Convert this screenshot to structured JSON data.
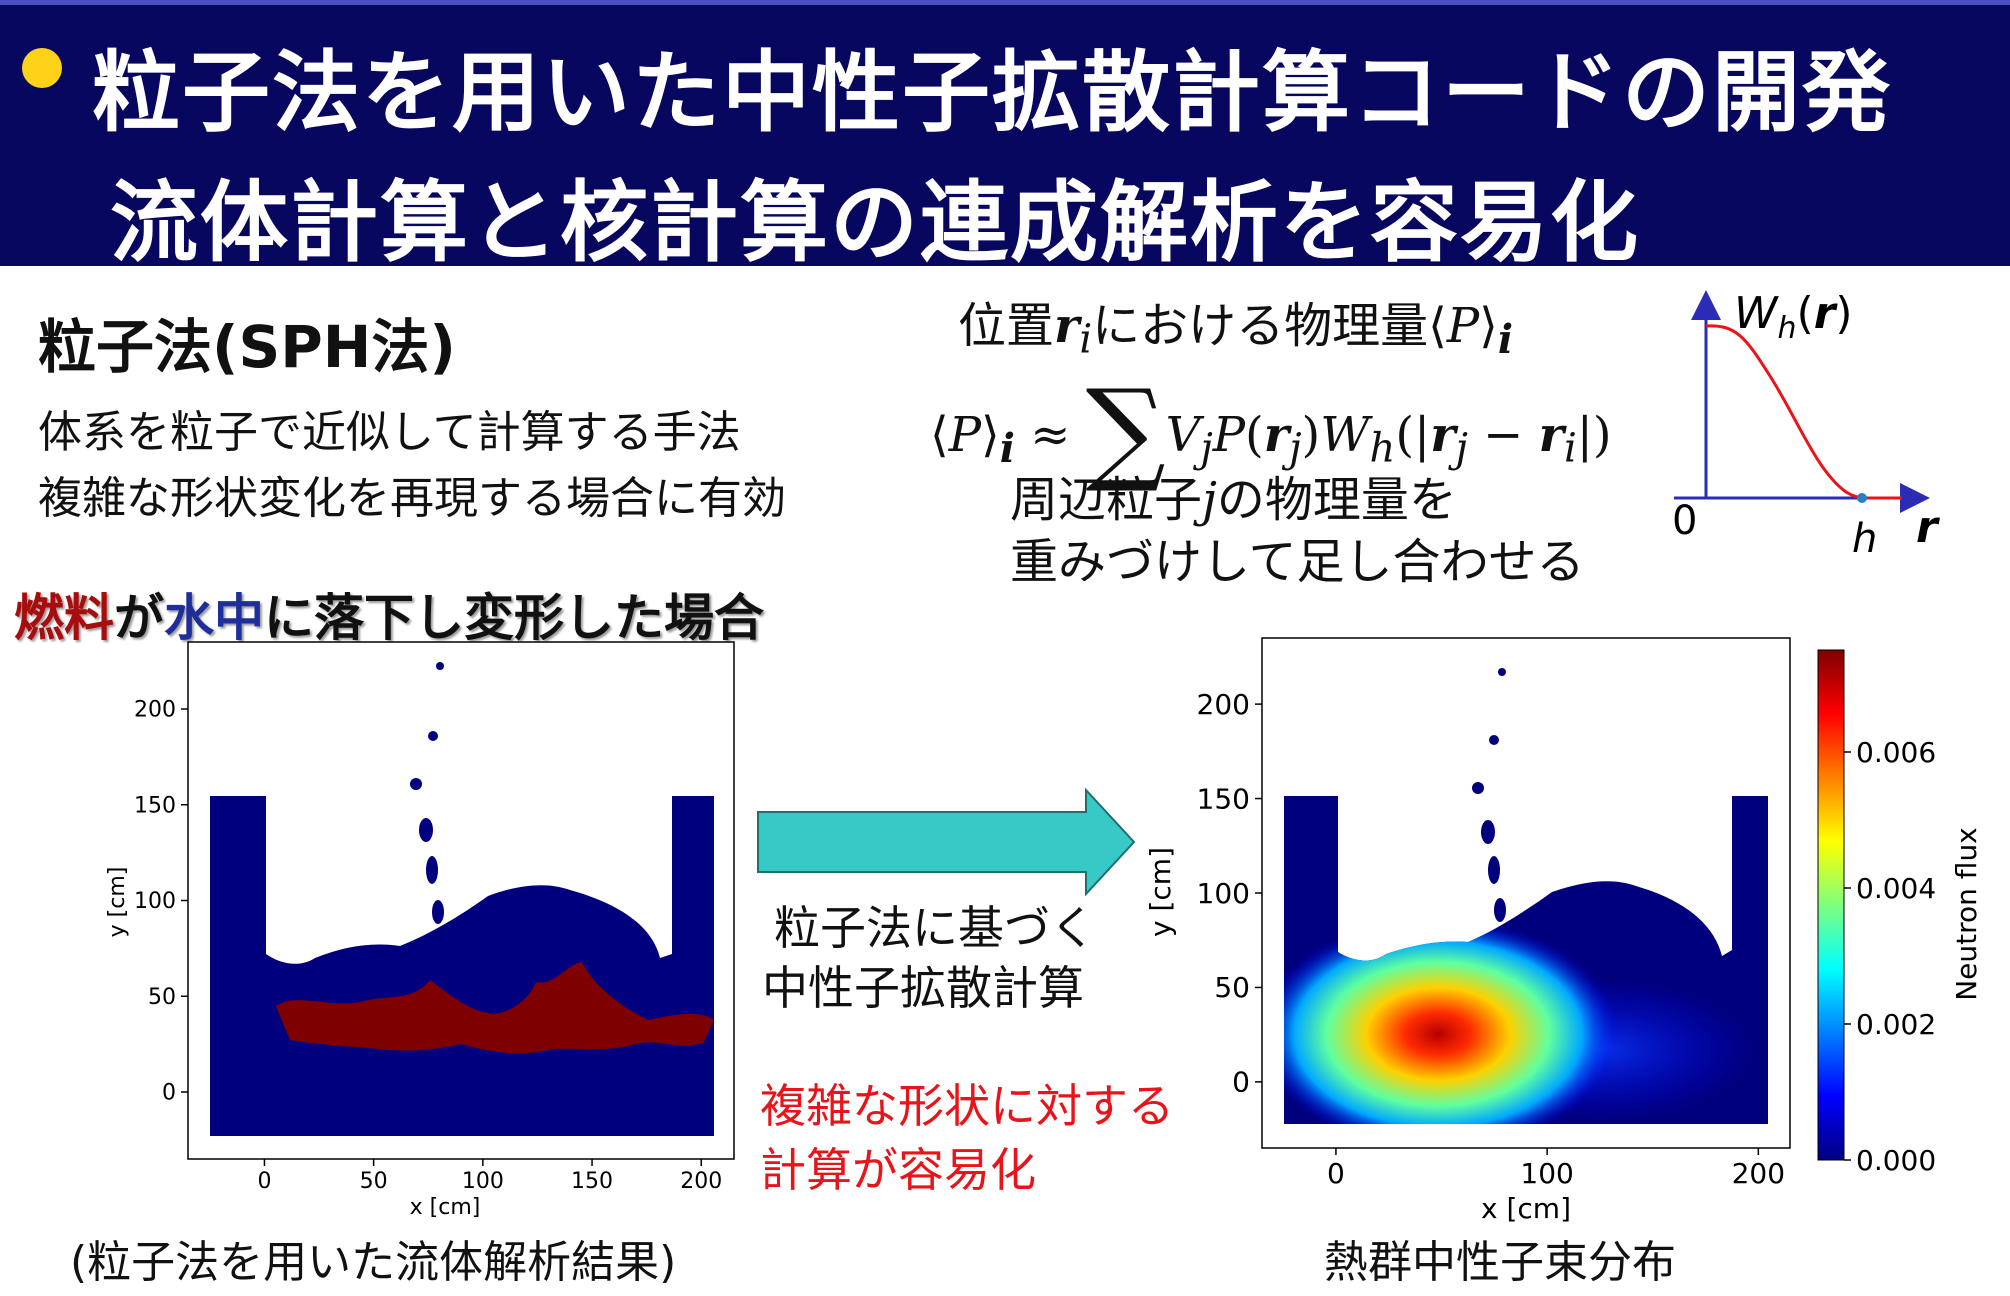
{
  "header": {
    "line1": "粒子法を用いた中性子拡散計算コードの開発",
    "line2": "流体計算と核計算の連成解析を容易化"
  },
  "sph": {
    "heading": "粒子法(SPH法)",
    "desc_line1": "体系を粒子で近似して計算する手法",
    "desc_line2": "複雑な形状変化を再現する場合に有効"
  },
  "formula": {
    "position_line_a": "位置",
    "position_line_b": "における物理量",
    "neighbor_line1": "周辺粒子",
    "neighbor_line1_b": "の物理量を",
    "neighbor_line2": "重みづけして足し合わせる"
  },
  "kernel_plot": {
    "label": "W",
    "origin_label": "0",
    "h_label": "h",
    "r_label": "r"
  },
  "case": {
    "fuel": "燃料",
    "ga": "が",
    "water": "水中",
    "rest": "に落下し変形した場合"
  },
  "arrow_text": {
    "line1": "粒子法に基づく",
    "line2": "中性子拡散計算"
  },
  "highlight": {
    "line1": "複雑な形状に対する",
    "line2": "計算が容易化"
  },
  "captions": {
    "left": "(粒子法を用いた流体解析結果)",
    "right": "熱群中性子束分布"
  },
  "colors": {
    "header_bg": "#07075f",
    "bullet": "#ffd21a",
    "water_particles": "#00007f",
    "fuel_particles": "#7f0000",
    "arrow": "#36c9c6",
    "highlight_text": "#e8141a"
  },
  "chart_data": [
    {
      "type": "scatter",
      "xlabel": "x [cm]",
      "ylabel": "y [cm]",
      "xticks": [
        0,
        50,
        100,
        150,
        200
      ],
      "yticks": [
        0,
        50,
        100,
        150,
        200
      ],
      "xlim": [
        -35,
        215
      ],
      "ylim": [
        -35,
        235
      ],
      "series": [
        {
          "values_description_none": "",
          "points": [
            [
              -25,
              -25
            ],
            [
              180,
              155
            ]
          ]
        }
      ]
    },
    {
      "type": "heatmap",
      "xlabel": "x [cm]",
      "ylabel": "y [cm]",
      "xticks": [
        0,
        100,
        200
      ],
      "yticks": [
        0,
        50,
        100,
        150,
        200
      ],
      "xlim": [
        -35,
        215
      ],
      "ylim": [
        -35,
        235
      ],
      "colorbar_label": "Neutron flux",
      "colorbar_ticks": [
        "0.000",
        "0.002",
        "0.004",
        "0.006"
      ],
      "colorbar_range": [
        0.0,
        0.0075
      ]
    }
  ]
}
